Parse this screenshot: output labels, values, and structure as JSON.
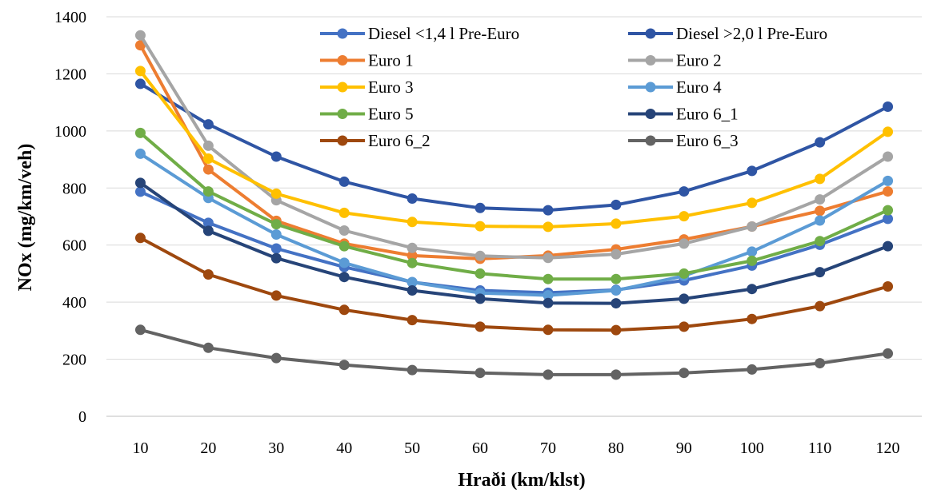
{
  "chart_data": {
    "type": "line",
    "xlabel": "Hraði (km/klst)",
    "ylabel": "NOx (mg/km/veh)",
    "ylim": [
      0,
      1400
    ],
    "yticks": [
      0,
      200,
      400,
      600,
      800,
      1000,
      1200,
      1400
    ],
    "x": [
      10,
      20,
      30,
      40,
      50,
      60,
      70,
      80,
      90,
      100,
      110,
      120
    ],
    "grid": "horizontal",
    "legend_position": "top-right",
    "series": [
      {
        "name": "Diesel <1,4 l Pre-Euro",
        "color": "#4472C4",
        "values": [
          787,
          678,
          588,
          523,
          470,
          441,
          433,
          443,
          476,
          528,
          601,
          692
        ]
      },
      {
        "name": "Diesel >2,0 l Pre-Euro",
        "color": "#2F55A4",
        "values": [
          1165,
          1023,
          910,
          822,
          763,
          730,
          722,
          741,
          788,
          860,
          960,
          1085
        ]
      },
      {
        "name": "Euro 1",
        "color": "#ED7D31",
        "values": [
          1300,
          865,
          685,
          605,
          563,
          552,
          563,
          585,
          620,
          665,
          720,
          788
        ]
      },
      {
        "name": "Euro 2",
        "color": "#A5A5A5",
        "values": [
          1335,
          948,
          757,
          651,
          590,
          562,
          555,
          568,
          605,
          665,
          760,
          910
        ]
      },
      {
        "name": "Euro 3",
        "color": "#FFC000",
        "values": [
          1210,
          903,
          780,
          713,
          681,
          666,
          664,
          675,
          701,
          748,
          832,
          997
        ]
      },
      {
        "name": "Euro 4",
        "color": "#5B9BD5",
        "values": [
          920,
          765,
          637,
          538,
          470,
          432,
          424,
          441,
          492,
          577,
          686,
          825
        ]
      },
      {
        "name": "Euro 5",
        "color": "#70AD47",
        "values": [
          993,
          788,
          673,
          596,
          537,
          500,
          481,
          481,
          500,
          545,
          614,
          722
        ]
      },
      {
        "name": "Euro 6_1",
        "color": "#264478",
        "values": [
          818,
          650,
          554,
          488,
          441,
          412,
          397,
          396,
          412,
          446,
          505,
          596
        ]
      },
      {
        "name": "Euro 6_2",
        "color": "#9E480E",
        "values": [
          625,
          497,
          423,
          373,
          337,
          314,
          303,
          302,
          314,
          341,
          386,
          455
        ]
      },
      {
        "name": "Euro 6_3",
        "color": "#636363",
        "values": [
          303,
          240,
          204,
          180,
          162,
          152,
          146,
          146,
          152,
          164,
          186,
          220
        ]
      }
    ]
  }
}
